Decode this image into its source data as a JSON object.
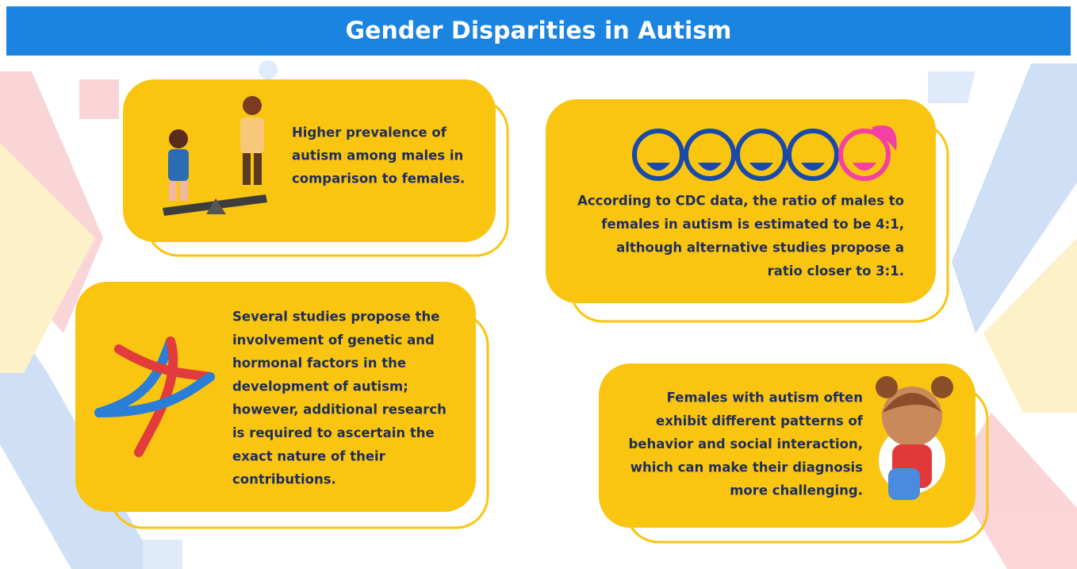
{
  "header": {
    "title": "Gender Disparities in Autism"
  },
  "cards": [
    {
      "lines": [
        "Higher prevalence of",
        "autism among males in",
        "comparison to females."
      ]
    },
    {
      "lines": [
        "According to CDC data, the ratio of males to",
        "females in autism is estimated to be 4:1,",
        "although alternative studies propose a",
        "ratio closer to 3:1."
      ]
    },
    {
      "lines": [
        "Several studies propose the",
        "involvement of genetic and",
        "hormonal factors in the",
        "development of autism;",
        "however, additional research",
        "is required to ascertain the",
        "exact nature of their",
        "contributions."
      ]
    },
    {
      "lines": [
        "Females with autism often",
        "exhibit different patterns of",
        "behavior and social interaction,",
        "which can make their diagnosis",
        "more challenging."
      ]
    }
  ]
}
